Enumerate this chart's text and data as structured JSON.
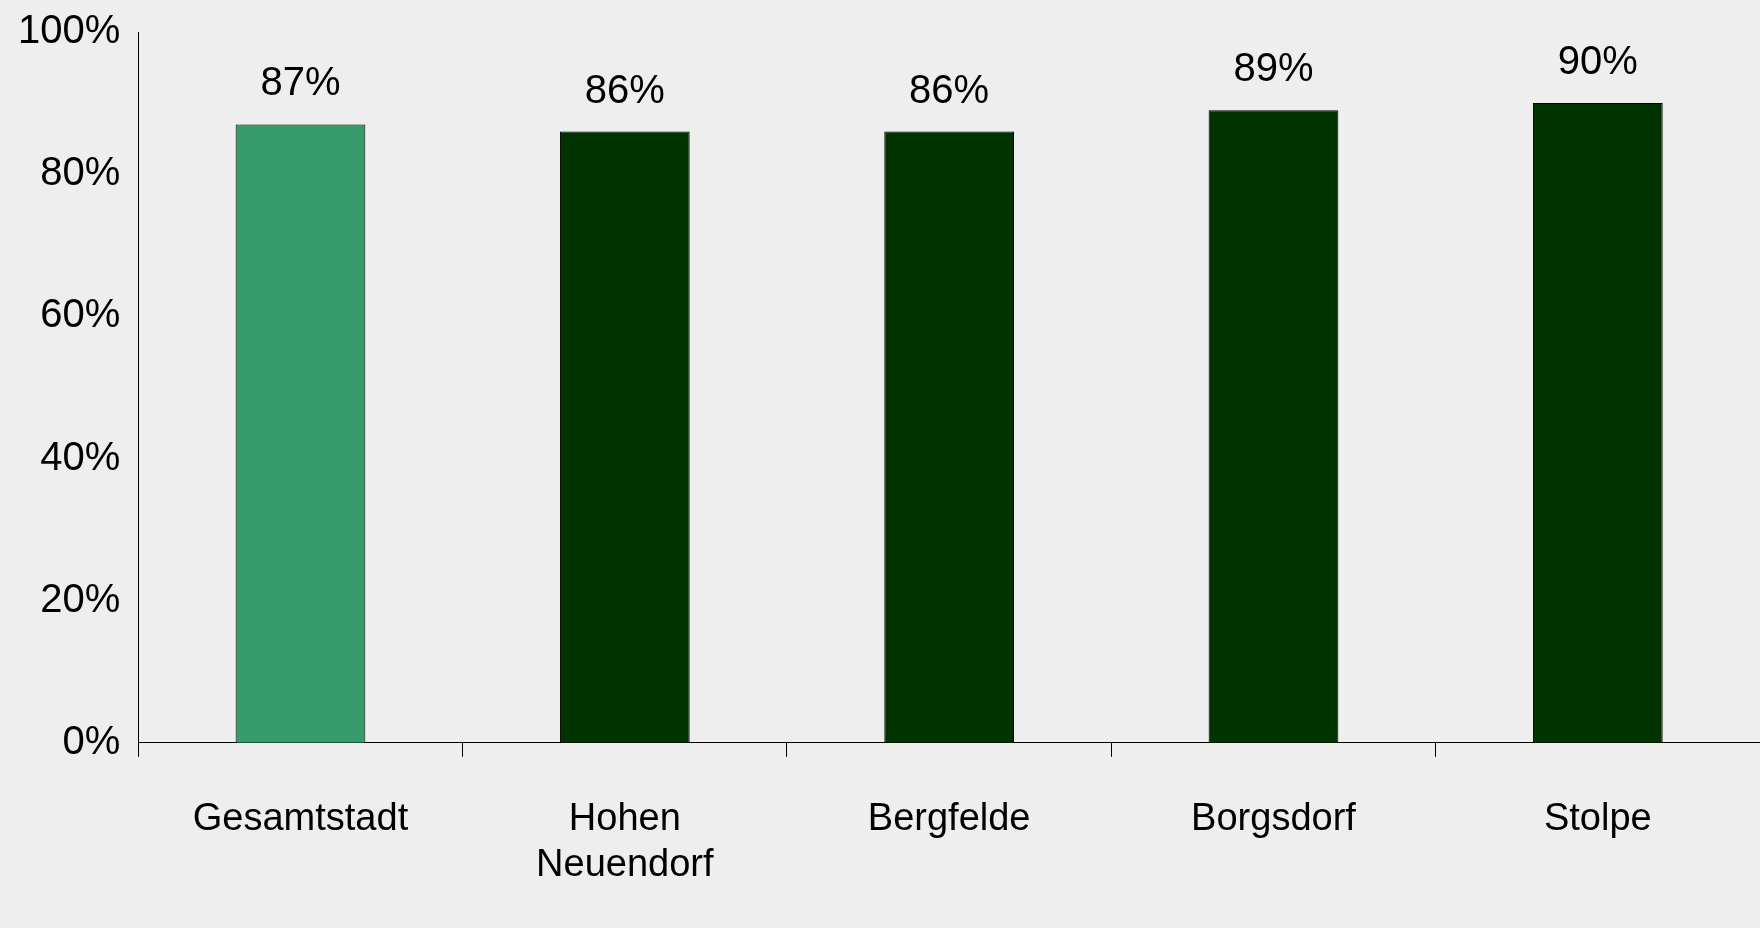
{
  "chart_data": {
    "type": "bar",
    "categories": [
      "Gesamtstadt",
      "Hohen Neuendorf",
      "Bergfelde",
      "Borgsdorf",
      "Stolpe"
    ],
    "values": [
      87,
      86,
      86,
      89,
      90
    ],
    "colors": [
      "#379b69",
      "#003300",
      "#003300",
      "#003300",
      "#003300"
    ],
    "value_labels": [
      "87%",
      "86%",
      "86%",
      "89%",
      "90%"
    ],
    "ylim": [
      0,
      100
    ],
    "yticks": [
      {
        "value": 0,
        "label": "0%"
      },
      {
        "value": 20,
        "label": "20%"
      },
      {
        "value": 40,
        "label": "40%"
      },
      {
        "value": 60,
        "label": "60%"
      },
      {
        "value": 80,
        "label": "80%"
      },
      {
        "value": 100,
        "label": "100%"
      }
    ],
    "grid": false,
    "legend": false
  }
}
